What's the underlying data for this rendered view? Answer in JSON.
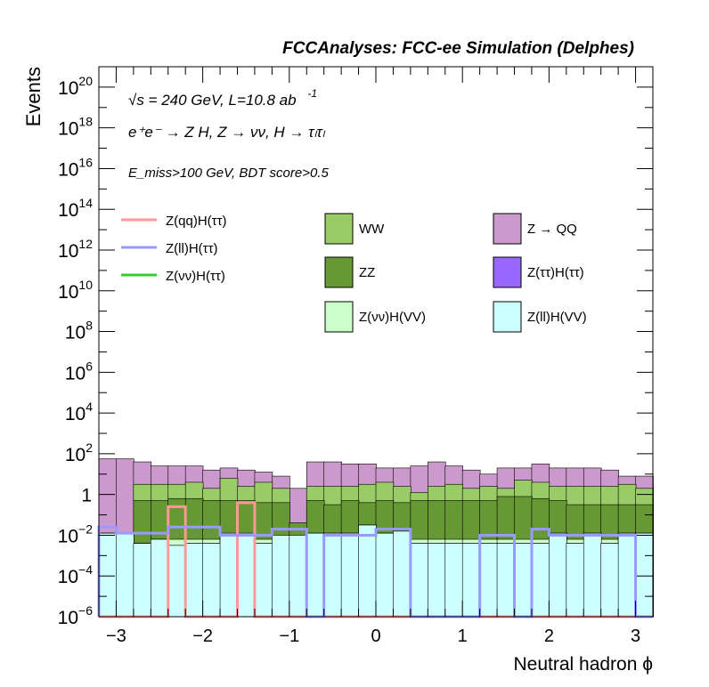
{
  "chart_data": {
    "type": "bar",
    "title": "FCCAnalyses: FCC-ee Simulation (Delphes)",
    "xlabel": "Neutral hadron ϕ",
    "ylabel": "Events",
    "xlim": [
      -3.2,
      3.2
    ],
    "ylim_log10": [
      -6,
      21
    ],
    "log_y": true,
    "x_ticks": [
      {
        "v": -3,
        "label": "−3"
      },
      {
        "v": -2,
        "label": "−2"
      },
      {
        "v": -1,
        "label": "−1"
      },
      {
        "v": 0,
        "label": "0"
      },
      {
        "v": 1,
        "label": "1"
      },
      {
        "v": 2,
        "label": "2"
      },
      {
        "v": 3,
        "label": "3"
      }
    ],
    "y_ticks": [
      {
        "e": -6,
        "base": "10",
        "exp": "−6"
      },
      {
        "e": -4,
        "base": "10",
        "exp": "−4"
      },
      {
        "e": -2,
        "base": "10",
        "exp": "−2"
      },
      {
        "e": 0,
        "base": "1",
        "exp": ""
      },
      {
        "e": 2,
        "base": "10",
        "exp": "2"
      },
      {
        "e": 4,
        "base": "10",
        "exp": "4"
      },
      {
        "e": 6,
        "base": "10",
        "exp": "6"
      },
      {
        "e": 8,
        "base": "10",
        "exp": "8"
      },
      {
        "e": 10,
        "base": "10",
        "exp": "10"
      },
      {
        "e": 12,
        "base": "10",
        "exp": "12"
      },
      {
        "e": 14,
        "base": "10",
        "exp": "14"
      },
      {
        "e": 16,
        "base": "10",
        "exp": "16"
      },
      {
        "e": 18,
        "base": "10",
        "exp": "18"
      },
      {
        "e": 20,
        "base": "10",
        "exp": "20"
      }
    ],
    "annotations": {
      "energy": "√s = 240 GeV, L=10.8 ab",
      "energy_exp": "-1",
      "process": "e⁺e⁻ → Z H, Z → νν, H → τₗτₗ",
      "selection": "E_miss>100 GeV, BDT score>0.5"
    },
    "bin_edges": [
      -3.2,
      -3.0,
      -2.8,
      -2.6,
      -2.4,
      -2.2,
      -2.0,
      -1.8,
      -1.6,
      -1.4,
      -1.2,
      -1.0,
      -0.8,
      -0.6,
      -0.4,
      -0.2,
      0.0,
      0.2,
      0.4,
      0.6,
      0.8,
      1.0,
      1.2,
      1.4,
      1.6,
      1.8,
      2.0,
      2.2,
      2.4,
      2.6,
      2.8,
      3.0,
      3.2
    ],
    "stack_series": [
      {
        "name": "Z(ll)H(VV)",
        "color": "#ccffff",
        "values_log10": [
          -1.9,
          -1.9,
          -2.4,
          -2.2,
          -2.5,
          -2.4,
          -2.4,
          -1.9,
          -1.9,
          -2.4,
          -2.0,
          -2.0,
          -1.9,
          -1.9,
          -1.9,
          -1.5,
          -1.9,
          -1.8,
          -2.4,
          -2.4,
          -2.4,
          -2.4,
          -2.4,
          -2.4,
          -2.4,
          -2.4,
          -1.9,
          -2.4,
          -1.9,
          -2.4,
          -1.9,
          -1.9
        ]
      },
      {
        "name": "Z(ττ)H(ττ)",
        "color": "#9966ff",
        "values_log10": [
          -1.9,
          -1.9,
          -2.4,
          -2.2,
          -2.5,
          -2.4,
          -2.4,
          -1.9,
          -1.9,
          -2.4,
          -2.0,
          -2.0,
          -1.9,
          -1.9,
          -1.9,
          -1.5,
          -1.9,
          -1.8,
          -2.4,
          -2.4,
          -2.4,
          -2.4,
          -2.4,
          -2.4,
          -2.4,
          -2.4,
          -1.9,
          -2.4,
          -1.9,
          -2.4,
          -1.9,
          -1.9
        ]
      },
      {
        "name": "Z(νν)H(VV)",
        "color": "#ccffcc",
        "values_log10": [
          -1.9,
          -1.9,
          -2.4,
          -2.2,
          -2.2,
          -2.2,
          -2.2,
          -2.2,
          -2.2,
          -2.2,
          -2.2,
          -2.0,
          -1.9,
          -1.9,
          -1.9,
          -1.5,
          -1.9,
          -1.8,
          -2.2,
          -2.2,
          -2.2,
          -2.2,
          -2.2,
          -2.2,
          -2.2,
          -2.2,
          -1.9,
          -2.2,
          -1.9,
          -2.2,
          -1.9,
          -1.9
        ]
      },
      {
        "name": "ZZ",
        "color": "#669933",
        "values_log10": [
          -1.9,
          -1.9,
          -0.3,
          -0.3,
          -0.2,
          -0.2,
          -0.3,
          -0.3,
          -0.3,
          -0.4,
          -0.4,
          -1.4,
          -0.3,
          -0.5,
          -0.3,
          -0.4,
          -0.3,
          -0.4,
          -0.3,
          -0.3,
          -0.3,
          -0.3,
          -0.3,
          -0.1,
          -0.1,
          -0.2,
          -0.3,
          -0.5,
          -0.5,
          -0.5,
          -0.5,
          -0.5
        ]
      },
      {
        "name": "WW",
        "color": "#99cc66",
        "values_log10": [
          -1.9,
          -1.9,
          0.5,
          0.5,
          0.5,
          0.6,
          0.3,
          0.8,
          0.4,
          0.6,
          0.3,
          -1.4,
          0.4,
          0.4,
          0.4,
          0.5,
          0.6,
          0.4,
          0.1,
          0.4,
          0.5,
          0.3,
          0.4,
          0.3,
          0.7,
          0.6,
          0.4,
          0.4,
          0.4,
          0.4,
          0.5,
          0.3
        ]
      },
      {
        "name": "Z → QQ",
        "color": "#cc99cc",
        "values_log10": [
          1.75,
          1.75,
          1.6,
          1.4,
          1.4,
          1.4,
          1.2,
          1.3,
          1.2,
          1.1,
          0.9,
          0.3,
          1.6,
          1.6,
          1.5,
          1.5,
          1.3,
          1.3,
          1.4,
          1.6,
          1.4,
          1.2,
          1.0,
          1.3,
          1.3,
          1.5,
          1.3,
          1.3,
          1.3,
          1.2,
          0.9,
          0.9
        ]
      }
    ],
    "line_series": [
      {
        "name": "Z(qq)H(ττ)",
        "color": "#ff9999",
        "values_log10": [
          -6,
          -6,
          -6,
          -6,
          -0.6,
          -6,
          -6,
          -6,
          -0.4,
          -6,
          -6,
          -6,
          -6,
          -6,
          -6,
          -6,
          -6,
          -6,
          -6,
          -6,
          -6,
          -6,
          -6,
          -6,
          -6,
          -6,
          -6,
          -6,
          -6,
          -6,
          -6,
          -6
        ]
      },
      {
        "name": "Z(ll)H(ττ)",
        "color": "#9999ff",
        "values_log10": [
          -1.6,
          -1.9,
          -1.9,
          -1.9,
          -1.6,
          -1.6,
          -1.6,
          -2.0,
          -2.0,
          -2.0,
          -1.7,
          -1.7,
          -6,
          -2.0,
          -2.0,
          -2.0,
          -1.7,
          -1.7,
          -6,
          -6,
          -6,
          -6,
          -2.0,
          -2.0,
          -6,
          -1.7,
          -2.0,
          -2.0,
          -2.0,
          -2.0,
          -2.0,
          -6
        ]
      },
      {
        "name": "Z(νν)H(ττ)",
        "color": "#33cc33",
        "values_log10": []
      }
    ],
    "legend": {
      "lines": [
        {
          "name": "Z(qq)H(ττ)",
          "color": "#ff9999"
        },
        {
          "name": "Z(ll)H(ττ)",
          "color": "#9999ff"
        },
        {
          "name": "Z(νν)H(ττ)",
          "color": "#33cc33"
        }
      ],
      "boxes": [
        {
          "name": "WW",
          "color": "#99cc66"
        },
        {
          "name": "Z → QQ",
          "color": "#cc99cc"
        },
        {
          "name": "ZZ",
          "color": "#669933"
        },
        {
          "name": "Z(ττ)H(ττ)",
          "color": "#9966ff"
        },
        {
          "name": "Z(νν)H(VV)",
          "color": "#ccffcc"
        },
        {
          "name": "Z(ll)H(VV)",
          "color": "#ccffff"
        }
      ]
    }
  }
}
